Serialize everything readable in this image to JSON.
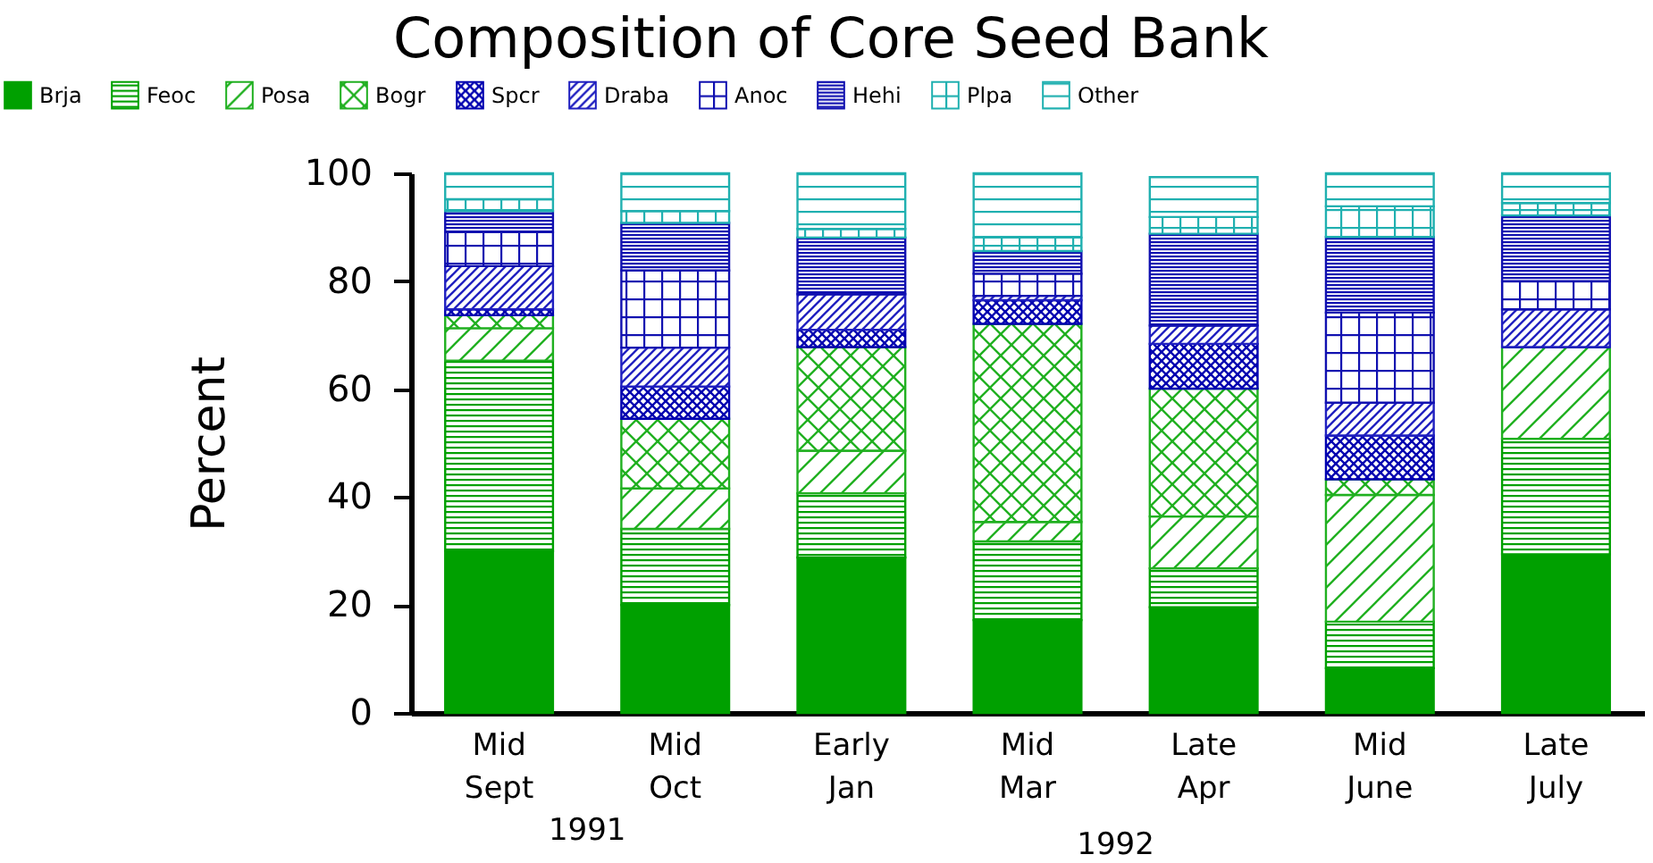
{
  "chart_data": {
    "type": "bar",
    "title": "Composition of Core Seed Bank",
    "ylabel": "Percent",
    "stacked": true,
    "legend": "top",
    "grid": false,
    "categories": [
      "Mid Sept",
      "Mid Oct",
      "Early Jan",
      "Mid Mar",
      "Late Apr",
      "Mid June",
      "Late July"
    ],
    "annotations": [
      "1991",
      "1992"
    ],
    "ylim": [
      0,
      100
    ],
    "yticks": [
      0,
      20,
      40,
      60,
      80,
      100
    ],
    "series": [
      {
        "name": "Brja",
        "color": "#00a000",
        "values": [
          30,
          20,
          28.8,
          17.2,
          19.6,
          8.3,
          29.4
        ]
      },
      {
        "name": "Feoc",
        "color": "#00a000",
        "values": [
          35.3,
          14.1,
          11.9,
          14.6,
          7.2,
          8.6,
          21.4
        ]
      },
      {
        "name": "Posa",
        "color": "#20b020",
        "values": [
          6,
          7.5,
          7.9,
          3.6,
          9.6,
          23.5,
          17
        ]
      },
      {
        "name": "Bogr",
        "color": "#20b020",
        "values": [
          2.4,
          12.9,
          19.2,
          36.7,
          23.7,
          2.9,
          0
        ]
      },
      {
        "name": "Spcr",
        "color": "#0000b0",
        "values": [
          1.1,
          6,
          3.2,
          4.4,
          8.3,
          8.1,
          0
        ]
      },
      {
        "name": "Draba",
        "color": "#2020c0",
        "values": [
          8,
          7.2,
          6.6,
          0.8,
          3.4,
          6.1,
          7
        ]
      },
      {
        "name": "Anoc",
        "color": "#1010b0",
        "values": [
          6.3,
          14.3,
          0,
          4.1,
          0,
          16.7,
          5.2
        ]
      },
      {
        "name": "Hehi",
        "color": "#1010b0",
        "values": [
          3.9,
          8.8,
          10.5,
          4.2,
          17,
          14,
          12.2
        ]
      },
      {
        "name": "Plpa",
        "color": "#20b0b0",
        "values": [
          2.2,
          2.2,
          1.6,
          2.5,
          3.1,
          5.7,
          2.3
        ]
      },
      {
        "name": "Other",
        "color": "#20b0b0",
        "values": [
          4.8,
          7,
          10.3,
          11.9,
          7.4,
          6.1,
          5.5
        ]
      }
    ]
  }
}
